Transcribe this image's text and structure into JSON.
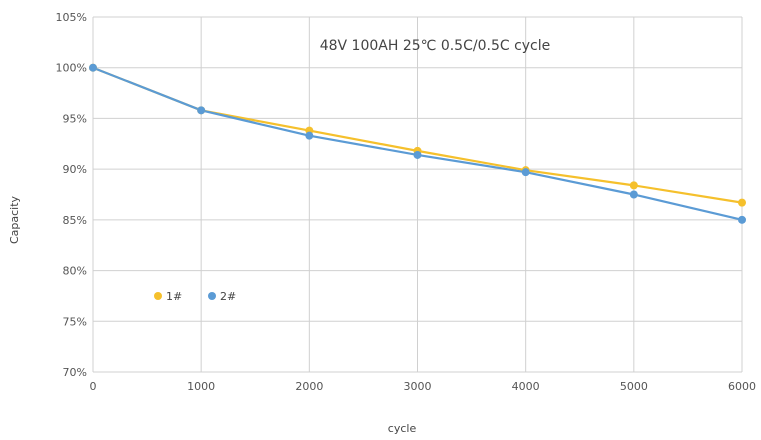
{
  "chart_data": {
    "type": "line",
    "title": "48V 100AH 25℃ 0.5C/0.5C cycle",
    "xlabel": "cycle",
    "ylabel": "Capacity",
    "x": [
      0,
      1000,
      2000,
      3000,
      4000,
      5000,
      6000
    ],
    "x_tick_labels": [
      "0",
      "1000",
      "2000",
      "3000",
      "4000",
      "5000",
      "6000"
    ],
    "y_tick_labels": [
      "70%",
      "75%",
      "80%",
      "85%",
      "90%",
      "95%",
      "100%",
      "105%"
    ],
    "y_ticks": [
      70,
      75,
      80,
      85,
      90,
      95,
      100,
      105
    ],
    "xlim": [
      0,
      6000
    ],
    "ylim": [
      70,
      105
    ],
    "grid": true,
    "legend_position": "left",
    "series": [
      {
        "name": "1#",
        "color": "#F5C02C",
        "values": [
          100.0,
          95.8,
          93.8,
          91.8,
          89.9,
          88.4,
          86.7
        ]
      },
      {
        "name": "2#",
        "color": "#5B9BD5",
        "values": [
          100.0,
          95.8,
          93.3,
          91.4,
          89.7,
          87.5,
          85.0
        ]
      }
    ]
  }
}
